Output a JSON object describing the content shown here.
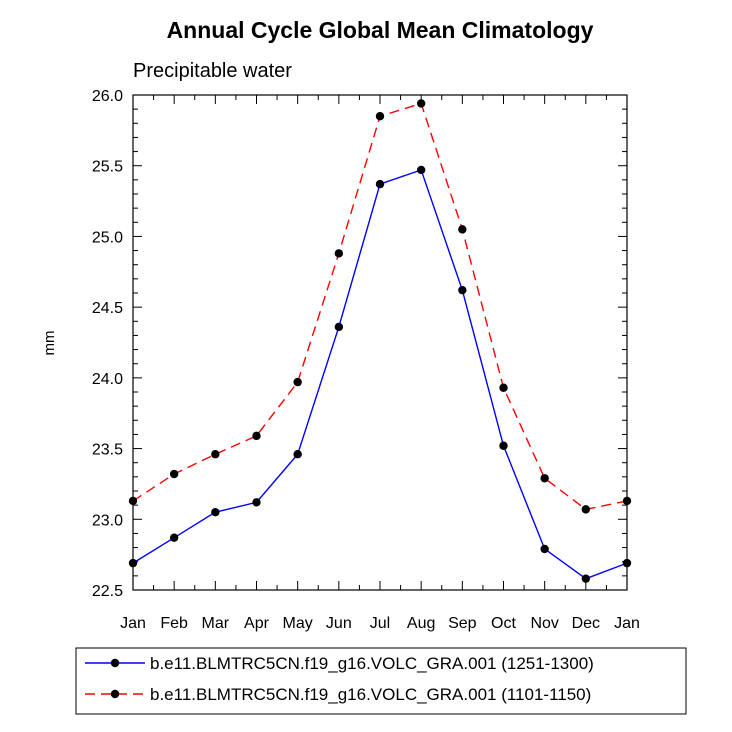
{
  "chart_data": {
    "type": "line",
    "title": "Annual Cycle Global Mean Climatology",
    "subtitle": "Precipitable water",
    "ylabel": "mm",
    "xlabel": "",
    "categories": [
      "Jan",
      "Feb",
      "Mar",
      "Apr",
      "May",
      "Jun",
      "Jul",
      "Aug",
      "Sep",
      "Oct",
      "Nov",
      "Dec",
      "Jan"
    ],
    "ylim": [
      22.5,
      26.0
    ],
    "yticks": [
      "22.5",
      "23.0",
      "23.5",
      "24.0",
      "24.5",
      "25.0",
      "25.5",
      "26.0"
    ],
    "series": [
      {
        "name": "b.e11.BLMTRC5CN.f19_g16.VOLC_GRA.001 (1251-1300)",
        "color": "#0000ff",
        "dash": "solid",
        "values": [
          22.69,
          22.87,
          23.05,
          23.12,
          23.46,
          24.36,
          25.37,
          25.47,
          24.62,
          23.52,
          22.79,
          22.58,
          22.69
        ]
      },
      {
        "name": "b.e11.BLMTRC5CN.f19_g16.VOLC_GRA.001 (1101-1150)",
        "color": "#ff0000",
        "dash": "dashed",
        "values": [
          23.13,
          23.32,
          23.46,
          23.59,
          23.97,
          24.88,
          25.85,
          25.94,
          25.05,
          23.93,
          23.29,
          23.07,
          23.13
        ]
      }
    ],
    "marker_color": "#000000"
  }
}
